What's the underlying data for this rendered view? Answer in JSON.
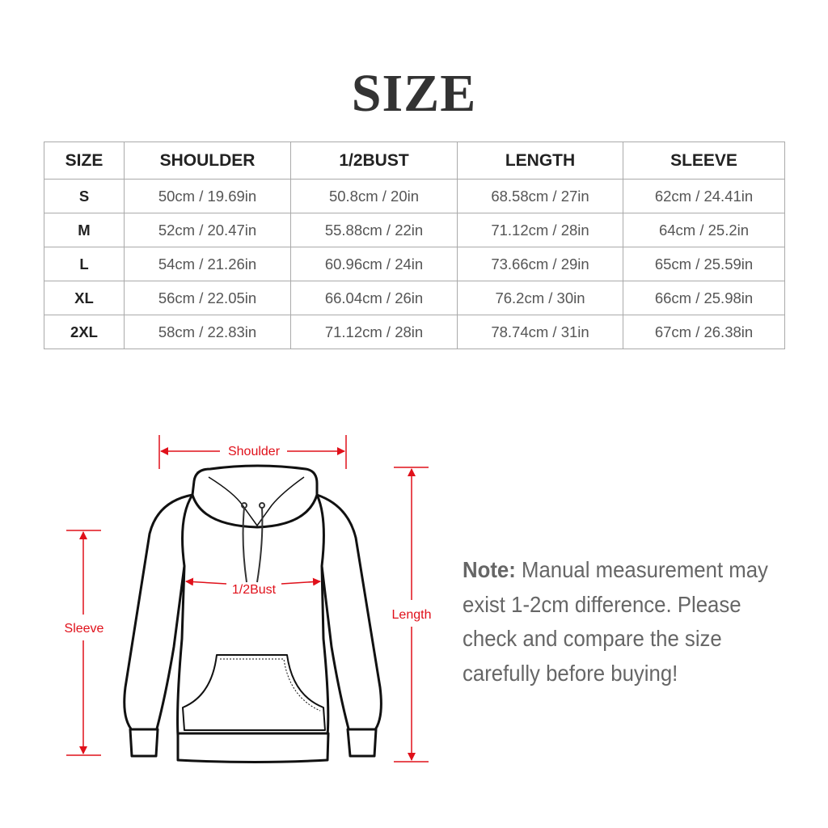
{
  "title": "SIZE",
  "table": {
    "headers": [
      "SIZE",
      "SHOULDER",
      "1/2BUST",
      "LENGTH",
      "SLEEVE"
    ],
    "rows": [
      [
        "S",
        "50cm / 19.69in",
        "50.8cm / 20in",
        "68.58cm / 27in",
        "62cm / 24.41in"
      ],
      [
        "M",
        "52cm / 20.47in",
        "55.88cm / 22in",
        "71.12cm / 28in",
        "64cm / 25.2in"
      ],
      [
        "L",
        "54cm / 21.26in",
        "60.96cm / 24in",
        "73.66cm / 29in",
        "65cm / 25.59in"
      ],
      [
        "XL",
        "56cm / 22.05in",
        "66.04cm / 26in",
        "76.2cm / 30in",
        "66cm / 25.98in"
      ],
      [
        "2XL",
        "58cm / 22.83in",
        "71.12cm / 28in",
        "78.74cm / 31in",
        "67cm / 26.38in"
      ]
    ]
  },
  "diagram": {
    "shoulder": "Shoulder",
    "bust": "1/2Bust",
    "sleeve": "Sleeve",
    "length": "Length",
    "measure_color": "#e0101a"
  },
  "note": {
    "label": "Note:",
    "text": "Manual measurement may exist 1-2cm difference. Please check and compare the size carefully before buying!"
  }
}
